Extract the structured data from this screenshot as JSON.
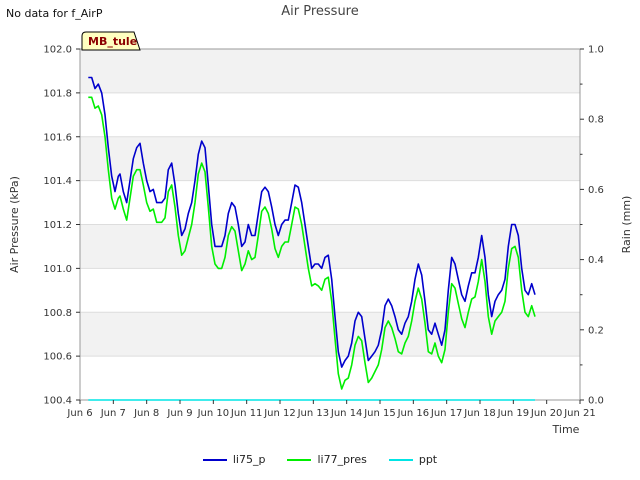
{
  "note": "No data for f_AirP",
  "chart_data": {
    "type": "line",
    "title": "Air Pressure",
    "xlabel": "Time",
    "ylabel": "Air Pressure (kPa)",
    "y2label": "Rain (mm)",
    "station_badge": "MB_tule",
    "xlim": [
      6,
      21
    ],
    "ylim": [
      100.4,
      102.0
    ],
    "y2lim": [
      0.0,
      1.0
    ],
    "x_ticks": [
      {
        "x": 6,
        "label": "Jun 6"
      },
      {
        "x": 7,
        "label": "Jun 7"
      },
      {
        "x": 8,
        "label": "Jun 8"
      },
      {
        "x": 9,
        "label": "Jun 9"
      },
      {
        "x": 10,
        "label": "Jun 10"
      },
      {
        "x": 11,
        "label": "Jun 11"
      },
      {
        "x": 12,
        "label": "Jun 12"
      },
      {
        "x": 13,
        "label": "Jun 13"
      },
      {
        "x": 14,
        "label": "Jun 14"
      },
      {
        "x": 15,
        "label": "Jun 15"
      },
      {
        "x": 16,
        "label": "Jun 16"
      },
      {
        "x": 17,
        "label": "Jun 17"
      },
      {
        "x": 18,
        "label": "Jun 18"
      },
      {
        "x": 19,
        "label": "Jun 19"
      },
      {
        "x": 20,
        "label": "Jun 20"
      },
      {
        "x": 21,
        "label": "Jun 21"
      }
    ],
    "y_ticks": [
      "100.4",
      "100.6",
      "100.8",
      "101.0",
      "101.2",
      "101.4",
      "101.6",
      "101.8",
      "102.0"
    ],
    "y2_ticks": [
      "0.0",
      "0.2",
      "0.4",
      "0.6",
      "0.8",
      "1.0"
    ],
    "grid": true,
    "legend_position": "bottom",
    "series": [
      {
        "name": "li75_p",
        "color": "#0000cc",
        "axis": "left",
        "points": [
          [
            6.25,
            101.87
          ],
          [
            6.35,
            101.87
          ],
          [
            6.45,
            101.82
          ],
          [
            6.55,
            101.84
          ],
          [
            6.65,
            101.8
          ],
          [
            6.75,
            101.7
          ],
          [
            6.85,
            101.55
          ],
          [
            6.95,
            101.42
          ],
          [
            7.05,
            101.35
          ],
          [
            7.15,
            101.42
          ],
          [
            7.2,
            101.43
          ],
          [
            7.3,
            101.35
          ],
          [
            7.4,
            101.3
          ],
          [
            7.5,
            101.4
          ],
          [
            7.6,
            101.5
          ],
          [
            7.7,
            101.55
          ],
          [
            7.8,
            101.57
          ],
          [
            7.9,
            101.48
          ],
          [
            8.0,
            101.4
          ],
          [
            8.1,
            101.35
          ],
          [
            8.2,
            101.36
          ],
          [
            8.3,
            101.3
          ],
          [
            8.45,
            101.3
          ],
          [
            8.55,
            101.32
          ],
          [
            8.65,
            101.45
          ],
          [
            8.75,
            101.48
          ],
          [
            8.85,
            101.38
          ],
          [
            8.95,
            101.25
          ],
          [
            9.05,
            101.15
          ],
          [
            9.15,
            101.18
          ],
          [
            9.25,
            101.25
          ],
          [
            9.35,
            101.3
          ],
          [
            9.45,
            101.4
          ],
          [
            9.55,
            101.52
          ],
          [
            9.65,
            101.58
          ],
          [
            9.75,
            101.55
          ],
          [
            9.85,
            101.38
          ],
          [
            9.95,
            101.2
          ],
          [
            10.05,
            101.1
          ],
          [
            10.15,
            101.1
          ],
          [
            10.25,
            101.1
          ],
          [
            10.35,
            101.15
          ],
          [
            10.45,
            101.25
          ],
          [
            10.55,
            101.3
          ],
          [
            10.65,
            101.28
          ],
          [
            10.75,
            101.2
          ],
          [
            10.85,
            101.1
          ],
          [
            10.95,
            101.12
          ],
          [
            11.05,
            101.2
          ],
          [
            11.15,
            101.15
          ],
          [
            11.25,
            101.15
          ],
          [
            11.35,
            101.25
          ],
          [
            11.45,
            101.35
          ],
          [
            11.55,
            101.37
          ],
          [
            11.65,
            101.35
          ],
          [
            11.75,
            101.28
          ],
          [
            11.85,
            101.2
          ],
          [
            11.95,
            101.15
          ],
          [
            12.05,
            101.2
          ],
          [
            12.15,
            101.22
          ],
          [
            12.25,
            101.22
          ],
          [
            12.35,
            101.3
          ],
          [
            12.45,
            101.38
          ],
          [
            12.55,
            101.37
          ],
          [
            12.65,
            101.3
          ],
          [
            12.75,
            101.2
          ],
          [
            12.85,
            101.1
          ],
          [
            12.95,
            101.0
          ],
          [
            13.05,
            101.02
          ],
          [
            13.15,
            101.02
          ],
          [
            13.25,
            101.0
          ],
          [
            13.35,
            101.05
          ],
          [
            13.45,
            101.06
          ],
          [
            13.55,
            100.95
          ],
          [
            13.65,
            100.78
          ],
          [
            13.75,
            100.62
          ],
          [
            13.85,
            100.55
          ],
          [
            13.95,
            100.58
          ],
          [
            14.05,
            100.6
          ],
          [
            14.15,
            100.66
          ],
          [
            14.25,
            100.76
          ],
          [
            14.35,
            100.8
          ],
          [
            14.45,
            100.78
          ],
          [
            14.55,
            100.68
          ],
          [
            14.65,
            100.58
          ],
          [
            14.75,
            100.6
          ],
          [
            14.85,
            100.62
          ],
          [
            14.95,
            100.65
          ],
          [
            15.05,
            100.72
          ],
          [
            15.15,
            100.83
          ],
          [
            15.25,
            100.86
          ],
          [
            15.35,
            100.83
          ],
          [
            15.45,
            100.78
          ],
          [
            15.55,
            100.72
          ],
          [
            15.65,
            100.7
          ],
          [
            15.75,
            100.75
          ],
          [
            15.85,
            100.78
          ],
          [
            15.95,
            100.85
          ],
          [
            16.05,
            100.95
          ],
          [
            16.15,
            101.02
          ],
          [
            16.25,
            100.97
          ],
          [
            16.35,
            100.85
          ],
          [
            16.45,
            100.72
          ],
          [
            16.55,
            100.7
          ],
          [
            16.65,
            100.75
          ],
          [
            16.75,
            100.7
          ],
          [
            16.85,
            100.65
          ],
          [
            16.95,
            100.72
          ],
          [
            17.05,
            100.9
          ],
          [
            17.15,
            101.05
          ],
          [
            17.25,
            101.02
          ],
          [
            17.35,
            100.95
          ],
          [
            17.45,
            100.88
          ],
          [
            17.55,
            100.85
          ],
          [
            17.65,
            100.92
          ],
          [
            17.75,
            100.98
          ],
          [
            17.85,
            100.98
          ],
          [
            17.95,
            101.05
          ],
          [
            18.05,
            101.15
          ],
          [
            18.15,
            101.05
          ],
          [
            18.25,
            100.88
          ],
          [
            18.35,
            100.78
          ],
          [
            18.45,
            100.85
          ],
          [
            18.55,
            100.88
          ],
          [
            18.65,
            100.9
          ],
          [
            18.75,
            100.95
          ],
          [
            18.85,
            101.1
          ],
          [
            18.95,
            101.2
          ],
          [
            19.05,
            101.2
          ],
          [
            19.15,
            101.15
          ],
          [
            19.25,
            101.0
          ],
          [
            19.35,
            100.9
          ],
          [
            19.45,
            100.88
          ],
          [
            19.55,
            100.93
          ],
          [
            19.65,
            100.88
          ]
        ]
      },
      {
        "name": "li77_pres",
        "color": "#00ee00",
        "axis": "left",
        "points": [
          [
            6.25,
            101.78
          ],
          [
            6.35,
            101.78
          ],
          [
            6.45,
            101.73
          ],
          [
            6.55,
            101.74
          ],
          [
            6.65,
            101.7
          ],
          [
            6.75,
            101.6
          ],
          [
            6.85,
            101.45
          ],
          [
            6.95,
            101.32
          ],
          [
            7.05,
            101.27
          ],
          [
            7.15,
            101.32
          ],
          [
            7.2,
            101.33
          ],
          [
            7.3,
            101.27
          ],
          [
            7.4,
            101.22
          ],
          [
            7.5,
            101.32
          ],
          [
            7.6,
            101.42
          ],
          [
            7.7,
            101.45
          ],
          [
            7.8,
            101.45
          ],
          [
            7.9,
            101.38
          ],
          [
            8.0,
            101.3
          ],
          [
            8.1,
            101.26
          ],
          [
            8.2,
            101.27
          ],
          [
            8.3,
            101.21
          ],
          [
            8.45,
            101.21
          ],
          [
            8.55,
            101.23
          ],
          [
            8.65,
            101.35
          ],
          [
            8.75,
            101.38
          ],
          [
            8.85,
            101.28
          ],
          [
            8.95,
            101.15
          ],
          [
            9.05,
            101.06
          ],
          [
            9.15,
            101.08
          ],
          [
            9.25,
            101.14
          ],
          [
            9.35,
            101.2
          ],
          [
            9.45,
            101.3
          ],
          [
            9.55,
            101.43
          ],
          [
            9.65,
            101.48
          ],
          [
            9.75,
            101.44
          ],
          [
            9.85,
            101.28
          ],
          [
            9.95,
            101.1
          ],
          [
            10.05,
            101.02
          ],
          [
            10.15,
            101.0
          ],
          [
            10.25,
            101.0
          ],
          [
            10.35,
            101.05
          ],
          [
            10.45,
            101.15
          ],
          [
            10.55,
            101.19
          ],
          [
            10.65,
            101.17
          ],
          [
            10.75,
            101.08
          ],
          [
            10.85,
            100.99
          ],
          [
            10.95,
            101.02
          ],
          [
            11.05,
            101.08
          ],
          [
            11.15,
            101.04
          ],
          [
            11.25,
            101.05
          ],
          [
            11.35,
            101.15
          ],
          [
            11.45,
            101.26
          ],
          [
            11.55,
            101.28
          ],
          [
            11.65,
            101.25
          ],
          [
            11.75,
            101.18
          ],
          [
            11.85,
            101.09
          ],
          [
            11.95,
            101.05
          ],
          [
            12.05,
            101.1
          ],
          [
            12.15,
            101.12
          ],
          [
            12.25,
            101.12
          ],
          [
            12.35,
            101.2
          ],
          [
            12.45,
            101.28
          ],
          [
            12.55,
            101.27
          ],
          [
            12.65,
            101.2
          ],
          [
            12.75,
            101.1
          ],
          [
            12.85,
            101.0
          ],
          [
            12.95,
            100.92
          ],
          [
            13.05,
            100.93
          ],
          [
            13.15,
            100.92
          ],
          [
            13.25,
            100.9
          ],
          [
            13.35,
            100.95
          ],
          [
            13.45,
            100.96
          ],
          [
            13.55,
            100.85
          ],
          [
            13.65,
            100.68
          ],
          [
            13.75,
            100.52
          ],
          [
            13.85,
            100.45
          ],
          [
            13.95,
            100.49
          ],
          [
            14.05,
            100.5
          ],
          [
            14.15,
            100.56
          ],
          [
            14.25,
            100.65
          ],
          [
            14.35,
            100.69
          ],
          [
            14.45,
            100.67
          ],
          [
            14.55,
            100.57
          ],
          [
            14.65,
            100.48
          ],
          [
            14.75,
            100.5
          ],
          [
            14.85,
            100.53
          ],
          [
            14.95,
            100.56
          ],
          [
            15.05,
            100.63
          ],
          [
            15.15,
            100.73
          ],
          [
            15.25,
            100.76
          ],
          [
            15.35,
            100.73
          ],
          [
            15.45,
            100.68
          ],
          [
            15.55,
            100.62
          ],
          [
            15.65,
            100.61
          ],
          [
            15.75,
            100.66
          ],
          [
            15.85,
            100.69
          ],
          [
            15.95,
            100.76
          ],
          [
            16.05,
            100.85
          ],
          [
            16.15,
            100.91
          ],
          [
            16.25,
            100.86
          ],
          [
            16.35,
            100.75
          ],
          [
            16.45,
            100.62
          ],
          [
            16.55,
            100.61
          ],
          [
            16.65,
            100.66
          ],
          [
            16.75,
            100.6
          ],
          [
            16.85,
            100.57
          ],
          [
            16.95,
            100.63
          ],
          [
            17.05,
            100.8
          ],
          [
            17.15,
            100.93
          ],
          [
            17.25,
            100.91
          ],
          [
            17.35,
            100.84
          ],
          [
            17.45,
            100.77
          ],
          [
            17.55,
            100.73
          ],
          [
            17.65,
            100.8
          ],
          [
            17.75,
            100.86
          ],
          [
            17.85,
            100.87
          ],
          [
            17.95,
            100.94
          ],
          [
            18.05,
            101.04
          ],
          [
            18.15,
            100.94
          ],
          [
            18.25,
            100.78
          ],
          [
            18.35,
            100.7
          ],
          [
            18.45,
            100.76
          ],
          [
            18.55,
            100.78
          ],
          [
            18.65,
            100.8
          ],
          [
            18.75,
            100.85
          ],
          [
            18.85,
            101.0
          ],
          [
            18.95,
            101.09
          ],
          [
            19.05,
            101.1
          ],
          [
            19.15,
            101.05
          ],
          [
            19.25,
            100.9
          ],
          [
            19.35,
            100.8
          ],
          [
            19.45,
            100.78
          ],
          [
            19.55,
            100.83
          ],
          [
            19.65,
            100.78
          ]
        ]
      },
      {
        "name": "ppt",
        "color": "#00e5e5",
        "axis": "right",
        "points": [
          [
            6.25,
            0.0
          ],
          [
            19.65,
            0.0
          ]
        ]
      }
    ]
  }
}
